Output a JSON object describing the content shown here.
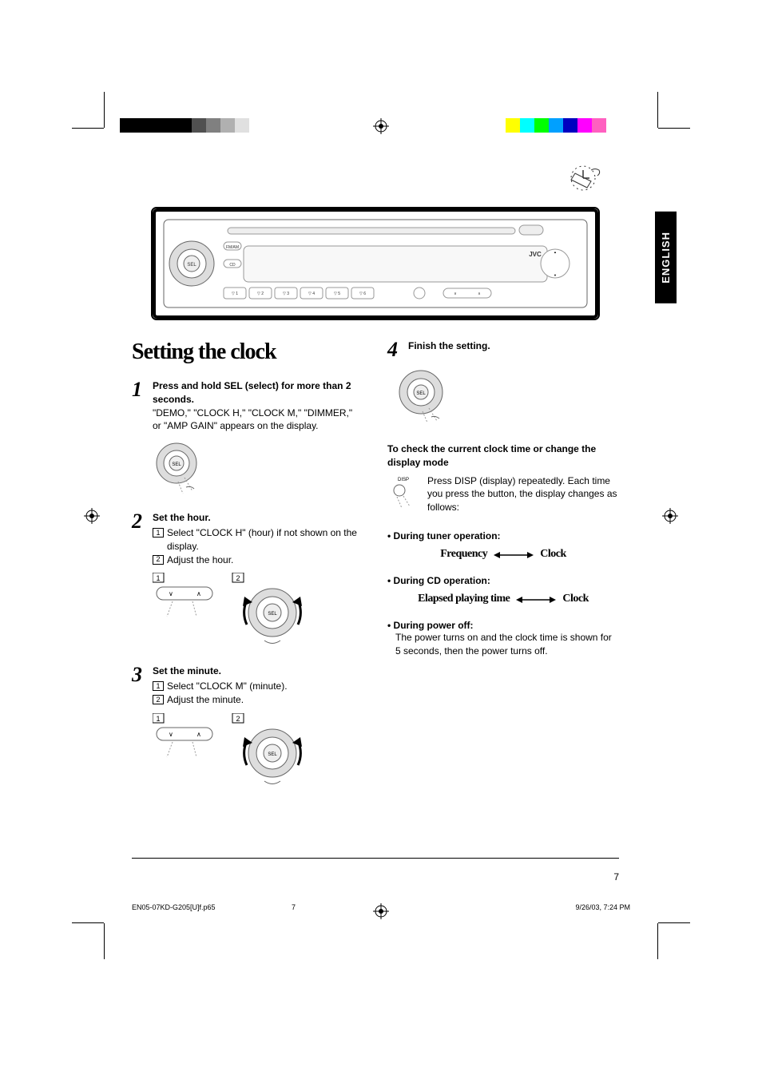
{
  "language_tab": "ENGLISH",
  "heading": "Setting the clock",
  "steps": [
    {
      "num": "1",
      "title": "Press and hold SEL (select) for more than 2 seconds.",
      "text": "\"DEMO,\" \"CLOCK H,\" \"CLOCK M,\" \"DIMMER,\" or \"AMP GAIN\" appears on the display."
    },
    {
      "num": "2",
      "title": "Set the hour.",
      "sub": [
        {
          "n": "1",
          "t": "Select \"CLOCK H\" (hour) if not shown on the display."
        },
        {
          "n": "2",
          "t": "Adjust the hour."
        }
      ]
    },
    {
      "num": "3",
      "title": "Set the minute.",
      "sub": [
        {
          "n": "1",
          "t": "Select \"CLOCK M\" (minute)."
        },
        {
          "n": "2",
          "t": "Adjust the minute."
        }
      ]
    },
    {
      "num": "4",
      "title": "Finish the setting."
    }
  ],
  "check_clock_heading": "To check the current clock time or change the display mode",
  "disp_text": "Press DISP (display) repeatedly. Each time you press the button, the display changes as follows:",
  "modes": [
    {
      "label": "During tuner operation:",
      "left": "Frequency",
      "right": "Clock"
    },
    {
      "label": "During CD operation:",
      "left": "Elapsed playing time",
      "right": "Clock"
    }
  ],
  "power_off": {
    "label": "During power off:",
    "text": "The power turns on and the clock time is shown for 5 seconds, then the power turns off."
  },
  "page_num": "7",
  "footer": {
    "file": "EN05-07KD-G205[U]f.p65",
    "page": "7",
    "datetime": "9/26/03, 7:24 PM"
  },
  "colors": {
    "gray_blocks": [
      "#000000",
      "#000000",
      "#000000",
      "#000000",
      "#000000",
      "#505050",
      "#808080",
      "#b0b0b0",
      "#e0e0e0"
    ],
    "cmyk_row": [
      "#ffff00",
      "#00ffff",
      "#00ff00",
      "#00a0ff",
      "#0000c0",
      "#ff00ff",
      "#ff60c0"
    ]
  }
}
